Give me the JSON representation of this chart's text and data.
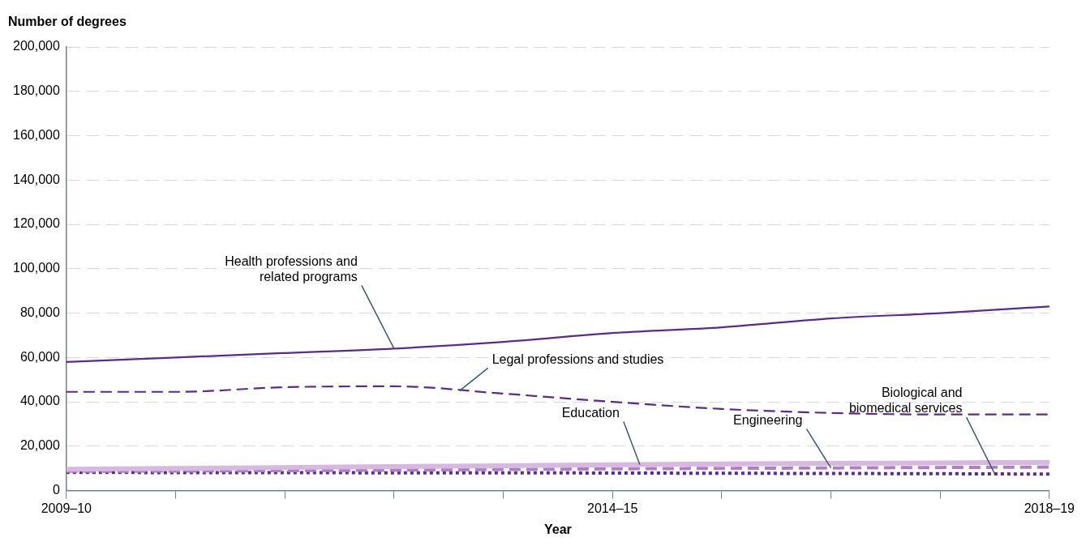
{
  "chart_data": {
    "type": "line",
    "xlabel": "Year",
    "ylabel": "Number of degrees",
    "categories": [
      "2009–10",
      null,
      null,
      null,
      null,
      "2014–15",
      null,
      null,
      null,
      "2018–19"
    ],
    "series": [
      {
        "name": "Health professions and related programs",
        "color": "#5b2c83",
        "line_style": "solid",
        "values": [
          58000,
          60000,
          62000,
          64000,
          67000,
          71000,
          73600,
          77600,
          80000,
          83000
        ]
      },
      {
        "name": "Legal professions and studies",
        "color": "#5b2c83",
        "line_style": "dashed",
        "values": [
          44500,
          44500,
          46600,
          47000,
          43700,
          40000,
          36800,
          35000,
          34300,
          34300
        ]
      },
      {
        "name": "Education",
        "color": "#d7b8e0",
        "line_style": "solid",
        "values": [
          9600,
          10000,
          10400,
          10800,
          11200,
          11600,
          12000,
          12300,
          12500,
          12700
        ]
      },
      {
        "name": "Engineering",
        "color": "#b07fc0",
        "line_style": "dashed",
        "values": [
          8700,
          8800,
          9000,
          9200,
          9500,
          9800,
          10000,
          10200,
          10400,
          10600
        ]
      },
      {
        "name": "Biological and biomedical services",
        "color": "#5b2c83",
        "line_style": "dotted",
        "values": [
          8200,
          8100,
          8100,
          8000,
          8000,
          7900,
          7800,
          7700,
          7600,
          7400
        ]
      }
    ],
    "ylim": [
      0,
      200000
    ],
    "yticks": [
      0,
      {
        "value": 20000,
        "label": "20,000"
      },
      {
        "value": 40000,
        "label": "40,000"
      },
      {
        "value": 60000,
        "label": "60,000"
      },
      {
        "value": 80000,
        "label": "80,000"
      },
      {
        "value": 100000,
        "label": "100,000"
      },
      {
        "value": 120000,
        "label": "120,000"
      },
      {
        "value": 140000,
        "label": "140,000"
      },
      {
        "value": 160000,
        "label": "160,000"
      },
      {
        "value": 180000,
        "label": "180,000"
      },
      {
        "value": 200000,
        "label": "200,000"
      }
    ],
    "grid": "y",
    "legend": false,
    "marker": "none"
  }
}
